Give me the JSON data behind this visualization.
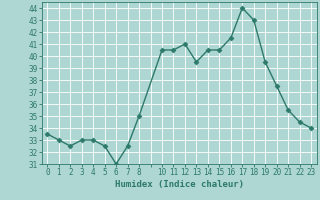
{
  "x": [
    0,
    1,
    2,
    3,
    4,
    5,
    6,
    7,
    8,
    10,
    11,
    12,
    13,
    14,
    15,
    16,
    17,
    18,
    19,
    20,
    21,
    22,
    23
  ],
  "y": [
    33.5,
    33.0,
    32.5,
    33.0,
    33.0,
    32.5,
    31.0,
    32.5,
    35.0,
    40.5,
    40.5,
    41.0,
    39.5,
    40.5,
    40.5,
    41.5,
    44.0,
    43.0,
    39.5,
    37.5,
    35.5,
    34.5,
    34.0
  ],
  "line_color": "#2d7a6a",
  "marker": "D",
  "marker_size": 2.5,
  "bg_color": "#aed6d2",
  "grid_color": "#ffffff",
  "xlabel": "Humidex (Indice chaleur)",
  "xlim": [
    -0.5,
    23.5
  ],
  "ylim": [
    31,
    44.5
  ],
  "yticks": [
    31,
    32,
    33,
    34,
    35,
    36,
    37,
    38,
    39,
    40,
    41,
    42,
    43,
    44
  ],
  "xtick_positions": [
    0,
    1,
    2,
    3,
    4,
    5,
    6,
    7,
    8,
    9,
    10,
    11,
    12,
    13,
    14,
    15,
    16,
    17,
    18,
    19,
    20,
    21,
    22,
    23
  ],
  "xtick_labels": [
    "0",
    "1",
    "2",
    "3",
    "4",
    "5",
    "6",
    "7",
    "8",
    "",
    "10",
    "11",
    "12",
    "13",
    "14",
    "15",
    "16",
    "17",
    "18",
    "19",
    "20",
    "21",
    "22",
    "23"
  ],
  "tick_color": "#2d7a6a",
  "label_fontsize": 6.5,
  "tick_fontsize": 5.5,
  "line_width": 1.0
}
